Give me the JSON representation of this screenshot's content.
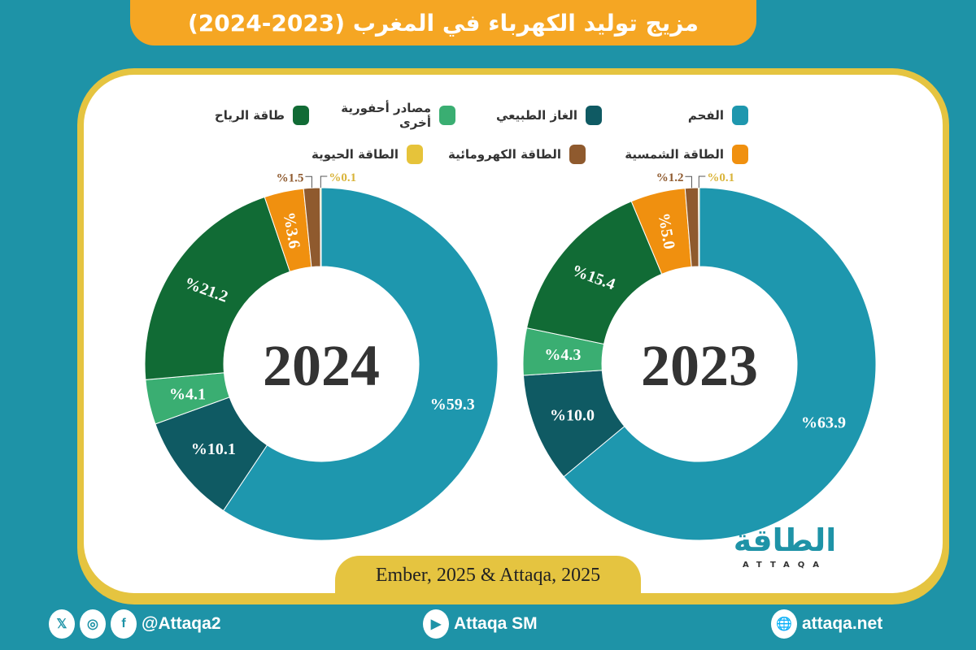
{
  "title": "مزيج توليد الكهرباء في المغرب (2023-2024)",
  "chart_data": [
    {
      "type": "donut",
      "center_label": "2023",
      "categories": [
        "الفحم",
        "الغاز الطبيعي",
        "مصادر أحفورية أخرى",
        "طاقة الرياح",
        "الطاقة الشمسية",
        "الطاقة الكهرومائية",
        "الطاقة الحيوية"
      ],
      "values": [
        63.9,
        10.0,
        4.3,
        15.4,
        5.0,
        1.2,
        0.1
      ],
      "labels": [
        "%63.9",
        "%10.0",
        "%4.3",
        "%15.4",
        "%5.0",
        "%1.2",
        "%0.1"
      ]
    },
    {
      "type": "donut",
      "center_label": "2024",
      "categories": [
        "الفحم",
        "الغاز الطبيعي",
        "مصادر أحفورية أخرى",
        "طاقة الرياح",
        "الطاقة الشمسية",
        "الطاقة الكهرومائية",
        "الطاقة الحيوية"
      ],
      "values": [
        59.3,
        10.1,
        4.1,
        21.2,
        3.6,
        1.5,
        0.1
      ],
      "labels": [
        "%59.3",
        "%10.1",
        "%4.1",
        "%21.2",
        "%3.6",
        "%1.5",
        "%0.1"
      ]
    }
  ],
  "legend": [
    {
      "label": "الفحم",
      "color": "#1e97ae"
    },
    {
      "label": "الغاز الطبيعي",
      "color": "#0f5a63"
    },
    {
      "label": "مصادر أحفورية أخرى",
      "color": "#3aae72"
    },
    {
      "label": "طاقة الرياح",
      "color": "#116b35"
    },
    {
      "label": "الطاقة الشمسية",
      "color": "#f0900f"
    },
    {
      "label": "الطاقة الكهرومائية",
      "color": "#8f5a2e"
    },
    {
      "label": "الطاقة الحيوية",
      "color": "#e6c33a"
    }
  ],
  "source": "Ember, 2025 & Attaqa, 2025",
  "logo": {
    "ar": "الطاقة",
    "en": "ATTAQA"
  },
  "footer": {
    "social_handle": "@Attaqa2",
    "youtube": "Attaqa SM",
    "website": "attaqa.net"
  }
}
